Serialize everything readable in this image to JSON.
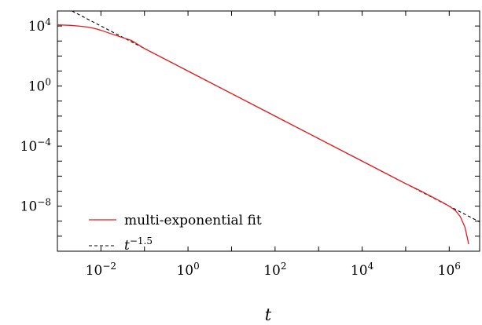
{
  "chart_data": {
    "type": "line",
    "xlabel": "t",
    "ylabel": "",
    "x_scale": "log",
    "y_scale": "log",
    "xlim": [
      0.001,
      5000000
    ],
    "ylim": [
      1e-11,
      100000
    ],
    "grid": false,
    "legend_position": "bottom-left",
    "x_tick_labels": [
      {
        "value": 0.01,
        "base": "10",
        "exp": "−2"
      },
      {
        "value": 1,
        "base": "10",
        "exp": "0"
      },
      {
        "value": 100,
        "base": "10",
        "exp": "2"
      },
      {
        "value": 10000,
        "base": "10",
        "exp": "4"
      },
      {
        "value": 1000000,
        "base": "10",
        "exp": "6"
      }
    ],
    "y_tick_labels": [
      {
        "value": 10000,
        "base": "10",
        "exp": "4"
      },
      {
        "value": 1,
        "base": "10",
        "exp": "0"
      },
      {
        "value": 0.0001,
        "base": "10",
        "exp": "−4"
      },
      {
        "value": 1e-08,
        "base": "10",
        "exp": "−8"
      }
    ],
    "series": [
      {
        "name": "multi-exponential fit",
        "color": "#e41a1c",
        "style": "solid",
        "x": [
          0.001,
          0.002,
          0.003,
          0.005,
          0.007,
          0.01,
          0.02,
          0.05,
          0.1,
          1,
          10,
          100,
          1000,
          10000,
          100000,
          200000,
          400000,
          700000,
          1000000,
          1400000,
          1800000,
          2300000,
          2800000
        ],
        "y": [
          12000,
          11000,
          10000,
          8500,
          7000,
          5200,
          2600,
          1100,
          316,
          10,
          0.316,
          0.01,
          0.000316,
          1e-05,
          3.16e-07,
          1.2e-07,
          4.2e-08,
          1.8e-08,
          1e-08,
          5e-09,
          2e-09,
          4e-10,
          3e-11
        ]
      },
      {
        "name": "t^-1.5",
        "color": "#000000",
        "style": "dashed",
        "x": [
          0.001,
          5000000
        ],
        "y": [
          316000,
          8.94e-10
        ]
      }
    ],
    "legend": [
      {
        "label": "multi-exponential fit",
        "base": "",
        "exp": ""
      },
      {
        "label": "",
        "base": "t",
        "exp": "−1.5"
      }
    ]
  }
}
